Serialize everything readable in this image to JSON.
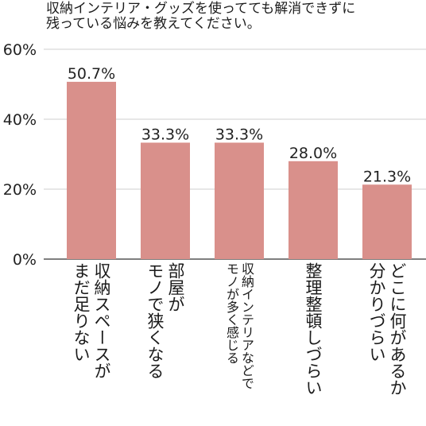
{
  "chart_data": {
    "type": "bar",
    "title": "収納インテリア・グッズを使ってても解消できずに\n残っている悩みを教えてください。",
    "categories": [
      "収納スペースが\nまだ足りない",
      "部屋が\nモノで狭くなる",
      "収納インテリアなどで\nモノが多く感じる",
      "整理整頓しづらい",
      "どこに何があるか\n分かりづらい"
    ],
    "values": [
      50.7,
      33.3,
      33.3,
      28.0,
      21.3
    ],
    "value_labels": [
      "50.7%",
      "33.3%",
      "33.3%",
      "28.0%",
      "21.3%"
    ],
    "yticks": [
      "0%",
      "20%",
      "40%",
      "60%"
    ],
    "ylim": [
      0,
      60
    ],
    "grid": true,
    "bar_color": "#d9908b",
    "xlabel": "",
    "ylabel": ""
  }
}
